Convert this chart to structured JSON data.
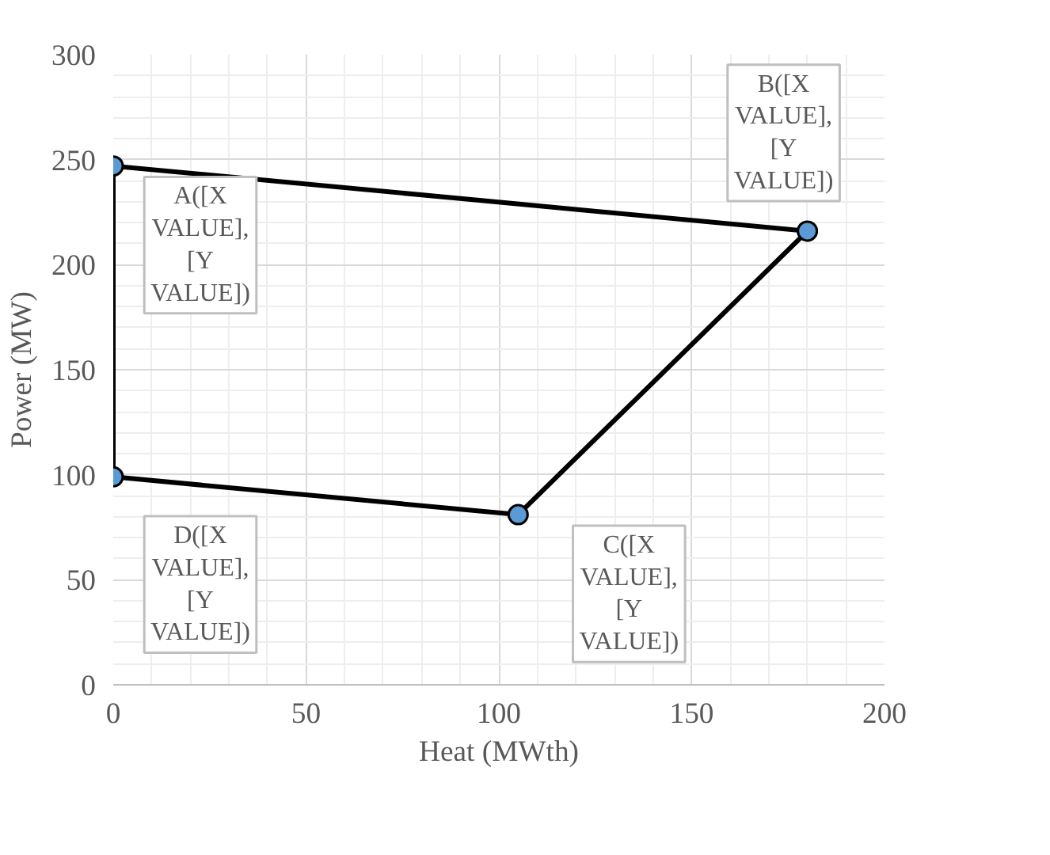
{
  "chart_data": {
    "type": "scatter",
    "xlabel": "Heat (MWth)",
    "ylabel": "Power (MW)",
    "series": [
      {
        "color": "#5b9bd5",
        "marker": "circle",
        "x": [
          0,
          180,
          105,
          0
        ],
        "values": [
          247,
          216,
          81,
          99
        ]
      },
      {
        "type": "line",
        "color": "#000000",
        "x": [
          0,
          180
        ],
        "values": [
          247,
          216
        ]
      },
      {
        "type": "line",
        "color": "#000000",
        "x": [
          0,
          105,
          180
        ],
        "values": [
          99,
          81,
          216
        ]
      },
      {
        "type": "line",
        "color": "#000000",
        "x": [
          0,
          0
        ],
        "values": [
          99,
          247
        ]
      }
    ],
    "xlim": [
      0,
      200
    ],
    "xticks": [
      0,
      50,
      100,
      150,
      200
    ],
    "ylim": [
      0,
      300
    ],
    "yticks": [
      0,
      50,
      100,
      150,
      200,
      250,
      300
    ],
    "grid": true,
    "line_style": "solid",
    "annotations": [
      {
        "text": "A([X VALUE], [Y VALUE])",
        "x": 0,
        "y": 247
      },
      {
        "text": "B([X VALUE], [Y VALUE])",
        "x": 180,
        "y": 216
      },
      {
        "text": "C([X VALUE], [Y VALUE])",
        "x": 105,
        "y": 81
      },
      {
        "text": "D([X VALUE], [Y VALUE])",
        "x": 0,
        "y": 99
      }
    ]
  }
}
